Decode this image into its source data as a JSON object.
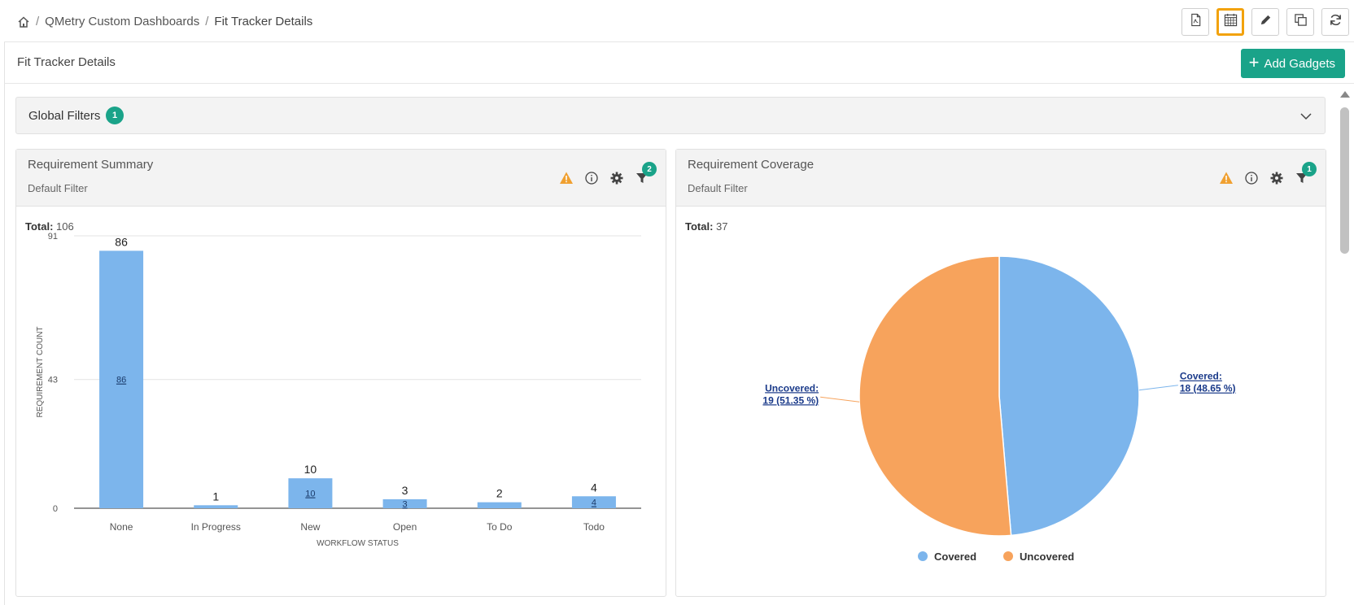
{
  "breadcrumb": {
    "items": [
      "QMetry Custom Dashboards",
      "Fit Tracker Details"
    ]
  },
  "toolbar": {
    "buttons": [
      "pdf-export",
      "calendar",
      "edit",
      "copy",
      "refresh"
    ],
    "active": "calendar"
  },
  "header": {
    "title": "Fit Tracker Details",
    "add_gadgets_label": "Add Gadgets"
  },
  "global_filters": {
    "label": "Global Filters",
    "count": "1"
  },
  "colors": {
    "accent": "#1aa389",
    "bar": "#7cb5ec",
    "covered": "#7cb5ec",
    "uncovered": "#f7a35c",
    "warning": "#f0a030",
    "active_border": "#f2a20c"
  },
  "gadgets": {
    "summary": {
      "title": "Requirement Summary",
      "subtitle": "Default Filter",
      "filter_count": "2",
      "total_label": "Total:",
      "total_value": "106"
    },
    "coverage": {
      "title": "Requirement Coverage",
      "subtitle": "Default Filter",
      "filter_count": "1",
      "total_label": "Total:",
      "total_value": "37"
    }
  },
  "chart_data": [
    {
      "type": "bar",
      "categories": [
        "None",
        "In Progress",
        "New",
        "Open",
        "To Do",
        "Todo"
      ],
      "values": [
        86,
        1,
        10,
        3,
        2,
        4
      ],
      "xlabel": "WORKFLOW STATUS",
      "ylabel": "REQUIREMENT COUNT",
      "yticks": [
        0,
        43,
        91
      ],
      "ylim": [
        0,
        91
      ],
      "grid": true,
      "legend": "none"
    },
    {
      "type": "pie",
      "slices": [
        {
          "name": "Covered",
          "value": 18,
          "label_line1": "Covered:",
          "label_line2": "18 (48.65 %)"
        },
        {
          "name": "Uncovered",
          "value": 19,
          "label_line1": "Uncovered:",
          "label_line2": "19 (51.35 %)"
        }
      ],
      "legend": "bottom",
      "legend_entries": [
        "Covered",
        "Uncovered"
      ]
    }
  ]
}
